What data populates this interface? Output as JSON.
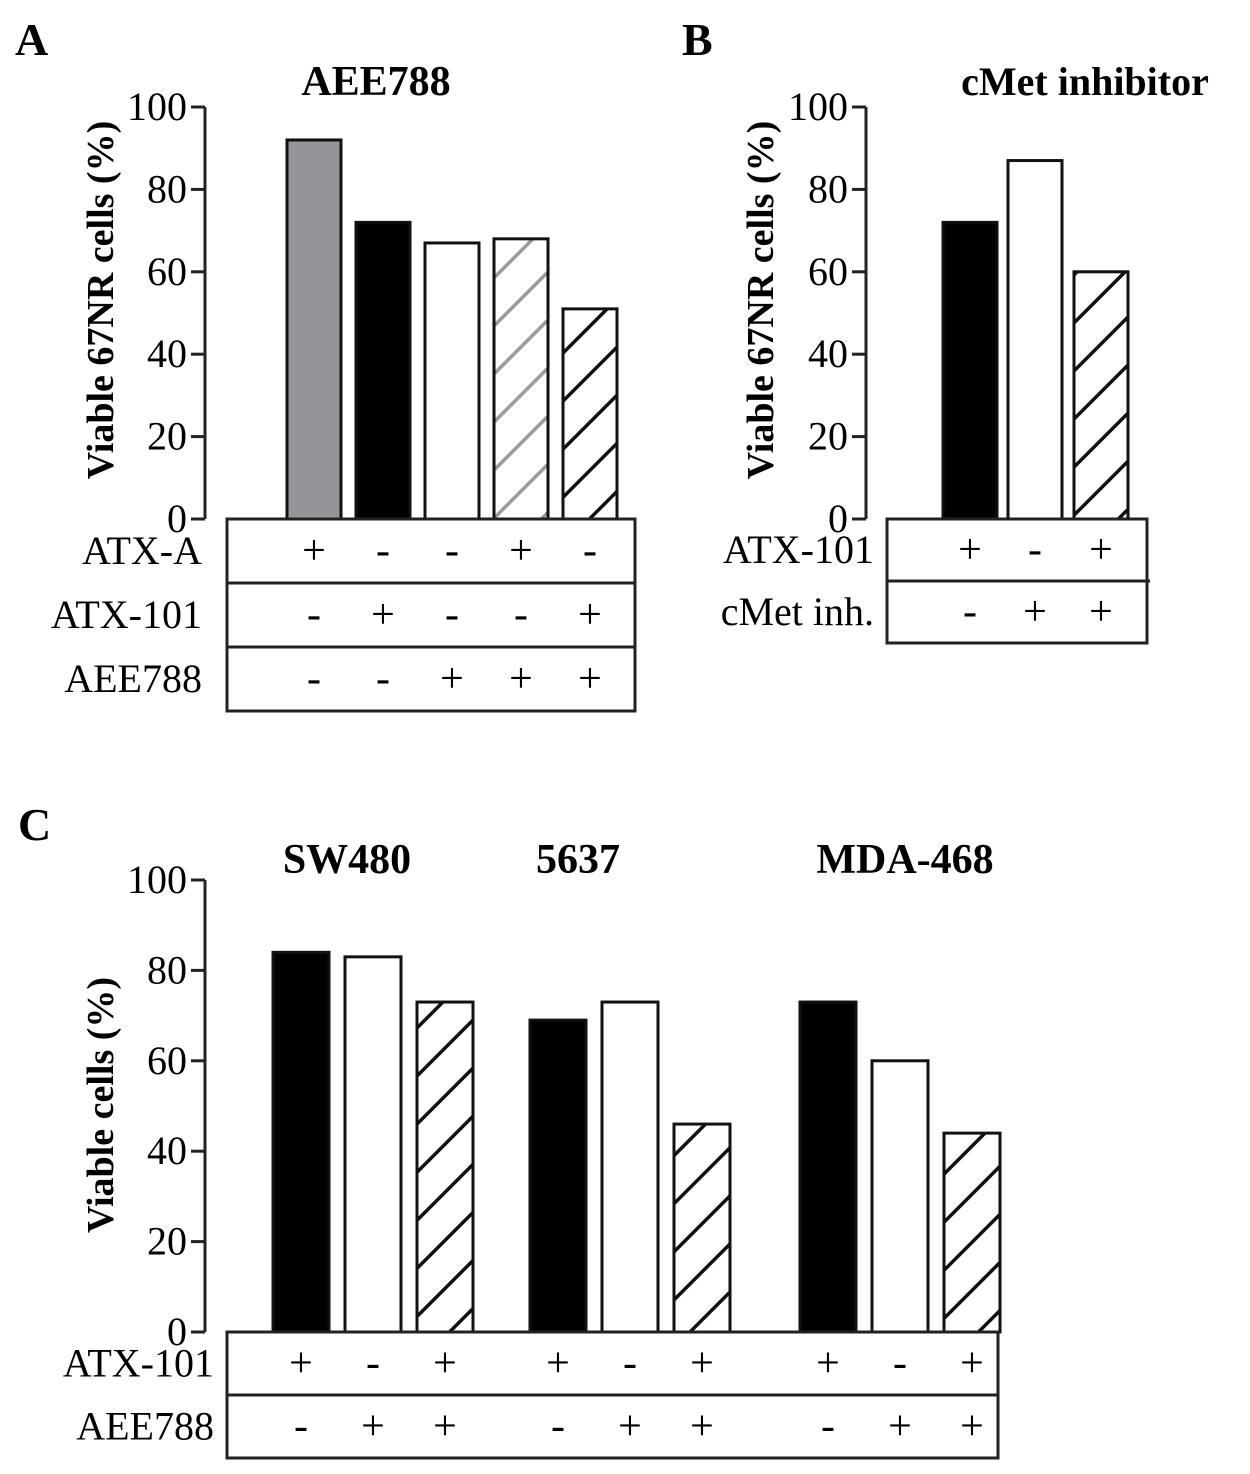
{
  "chart_data": [
    {
      "type": "bar",
      "panel_label": "A",
      "title": "AEE788",
      "ylabel": "Viable 67NR cells (%)",
      "ylim": [
        0,
        100
      ],
      "yticks": [
        "0",
        "20",
        "40",
        "60",
        "80",
        "100"
      ],
      "values": [
        92,
        72,
        67,
        68,
        51
      ],
      "bar_styles": [
        "gray",
        "black",
        "white",
        "gray-hatch",
        "black-hatch"
      ],
      "conditions": [
        {
          "label": "ATX-A",
          "marks": [
            "+",
            "-",
            "-",
            "+",
            "-"
          ]
        },
        {
          "label": "ATX-101",
          "marks": [
            "-",
            "+",
            "-",
            "-",
            "+"
          ]
        },
        {
          "label": "AEE788",
          "marks": [
            "-",
            "-",
            "+",
            "+",
            "+"
          ]
        }
      ]
    },
    {
      "type": "bar",
      "panel_label": "B",
      "title": "cMet inhibitor",
      "ylabel": "Viable 67NR cells (%)",
      "ylim": [
        0,
        100
      ],
      "yticks": [
        "0",
        "20",
        "40",
        "60",
        "80",
        "100"
      ],
      "values": [
        72,
        87,
        60
      ],
      "bar_styles": [
        "black",
        "white",
        "black-hatch"
      ],
      "conditions": [
        {
          "label": "ATX-101",
          "marks": [
            "+",
            "-",
            "+"
          ]
        },
        {
          "label": "cMet inh.",
          "marks": [
            "-",
            "+",
            "+"
          ]
        }
      ]
    },
    {
      "type": "bar",
      "panel_label": "C",
      "ylabel": "Viable cells (%)",
      "ylim": [
        0,
        100
      ],
      "yticks": [
        "0",
        "20",
        "40",
        "60",
        "80",
        "100"
      ],
      "groups": [
        {
          "title": "SW480",
          "values": [
            84,
            83,
            73
          ]
        },
        {
          "title": "5637",
          "values": [
            69,
            73,
            46
          ]
        },
        {
          "title": "MDA-468",
          "values": [
            73,
            60,
            44
          ]
        }
      ],
      "bar_styles": [
        "black",
        "white",
        "black-hatch"
      ],
      "conditions": [
        {
          "label": "ATX-101",
          "marks": [
            "+",
            "-",
            "+",
            "+",
            "-",
            "+",
            "+",
            "-",
            "+"
          ]
        },
        {
          "label": "AEE788",
          "marks": [
            "-",
            "+",
            "+",
            "-",
            "+",
            "+",
            "-",
            "+",
            "+"
          ]
        }
      ]
    }
  ]
}
